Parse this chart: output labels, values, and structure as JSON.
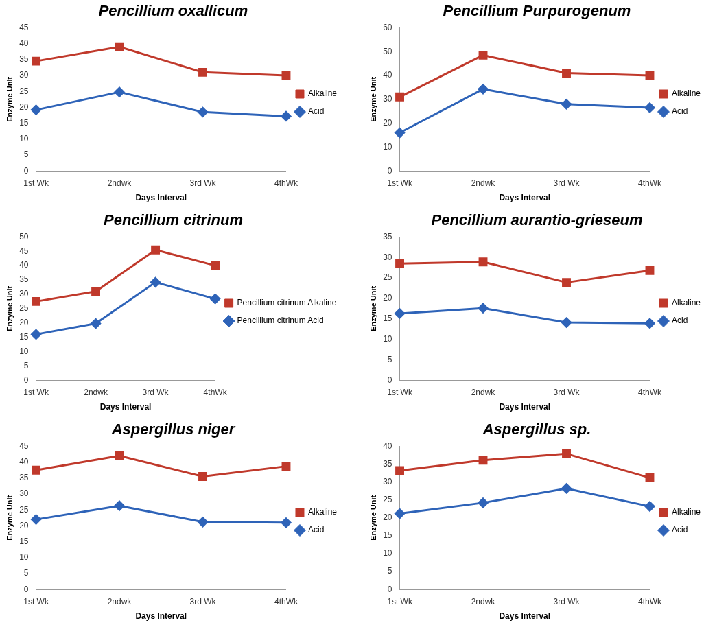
{
  "chart_data": [
    {
      "type": "line",
      "title": "Pencillium oxallicum",
      "xlabel": "Days Interval",
      "ylabel": "Enzyme Unit",
      "categories": [
        "1st Wk",
        "2ndwk",
        "3rd Wk",
        "4thWk"
      ],
      "ylim": [
        0,
        45
      ],
      "yticks": [
        0,
        5,
        10,
        15,
        20,
        25,
        30,
        35,
        40,
        45
      ],
      "grid": false,
      "legend": "right",
      "series": [
        {
          "name": "Alkaline",
          "color": "#c0392b",
          "marker": "square",
          "values": [
            34.5,
            39,
            31,
            30
          ]
        },
        {
          "name": "Acid",
          "color": "#2e63b8",
          "marker": "diamond",
          "values": [
            19.2,
            24.8,
            18.5,
            17.2
          ]
        }
      ]
    },
    {
      "type": "line",
      "title": "Pencillium Purpurogenum",
      "xlabel": "Days Interval",
      "ylabel": "Enzyme Unit",
      "categories": [
        "1st Wk",
        "2ndwk",
        "3rd Wk",
        "4thWk"
      ],
      "ylim": [
        0,
        60
      ],
      "yticks": [
        0,
        10,
        20,
        30,
        40,
        50,
        60
      ],
      "grid": false,
      "legend": "right",
      "series": [
        {
          "name": "Alkaline",
          "color": "#c0392b",
          "marker": "square",
          "values": [
            31,
            48.5,
            41,
            40
          ]
        },
        {
          "name": "Acid",
          "color": "#2e63b8",
          "marker": "diamond",
          "values": [
            16,
            34.3,
            28,
            26.5
          ]
        }
      ]
    },
    {
      "type": "line",
      "title": "Pencillium citrinum",
      "xlabel": "Days Interval",
      "ylabel": "Enzyme Unit",
      "categories": [
        "1st Wk",
        "2ndwk",
        "3rd Wk",
        "4thWk"
      ],
      "ylim": [
        0,
        50
      ],
      "yticks": [
        0,
        5,
        10,
        15,
        20,
        25,
        30,
        35,
        40,
        45,
        50
      ],
      "grid": false,
      "legend": "right",
      "series": [
        {
          "name": "Pencillium citrinum Alkaline",
          "color": "#c0392b",
          "marker": "square",
          "values": [
            27.5,
            31,
            45.5,
            40
          ]
        },
        {
          "name": "Pencillium citrinum Acid",
          "color": "#2e63b8",
          "marker": "diamond",
          "values": [
            16,
            19.8,
            34.2,
            28.4
          ]
        }
      ]
    },
    {
      "type": "line",
      "title": "Pencillium aurantio-grieseum",
      "xlabel": "Days Interval",
      "ylabel": "Enzyme Unit",
      "categories": [
        "1st Wk",
        "2ndwk",
        "3rd Wk",
        "4thWk"
      ],
      "ylim": [
        0,
        35
      ],
      "yticks": [
        0,
        5,
        10,
        15,
        20,
        25,
        30,
        35
      ],
      "grid": false,
      "legend": "right",
      "series": [
        {
          "name": "Alkaline",
          "color": "#c0392b",
          "marker": "square",
          "values": [
            28.5,
            28.9,
            23.9,
            26.8
          ]
        },
        {
          "name": "Acid",
          "color": "#2e63b8",
          "marker": "diamond",
          "values": [
            16.3,
            17.6,
            14.1,
            13.9
          ]
        }
      ]
    },
    {
      "type": "line",
      "title": "Aspergillus niger",
      "xlabel": "Days Interval",
      "ylabel": "Enzyme Unit",
      "categories": [
        "1st Wk",
        "2ndwk",
        "3rd Wk",
        "4thWk"
      ],
      "ylim": [
        0,
        45
      ],
      "yticks": [
        0,
        5,
        10,
        15,
        20,
        25,
        30,
        35,
        40,
        45
      ],
      "grid": false,
      "legend": "right",
      "series": [
        {
          "name": "Alkaline",
          "color": "#c0392b",
          "marker": "square",
          "values": [
            37.5,
            42,
            35.5,
            38.7
          ]
        },
        {
          "name": "Acid",
          "color": "#2e63b8",
          "marker": "diamond",
          "values": [
            22,
            26.3,
            21.2,
            21
          ]
        }
      ]
    },
    {
      "type": "line",
      "title": "Aspergillus sp.",
      "xlabel": "Days Interval",
      "ylabel": "Enzyme Unit",
      "categories": [
        "1st Wk",
        "2ndwk",
        "3rd Wk",
        "4thWk"
      ],
      "ylim": [
        0,
        40
      ],
      "yticks": [
        0,
        5,
        10,
        15,
        20,
        25,
        30,
        35,
        40
      ],
      "grid": false,
      "legend": "right",
      "series": [
        {
          "name": "Alkaline",
          "color": "#c0392b",
          "marker": "square",
          "values": [
            33.2,
            36.1,
            37.9,
            31.2
          ]
        },
        {
          "name": "Acid",
          "color": "#2e63b8",
          "marker": "diamond",
          "values": [
            21.2,
            24.2,
            28.2,
            23.2
          ]
        }
      ]
    }
  ]
}
